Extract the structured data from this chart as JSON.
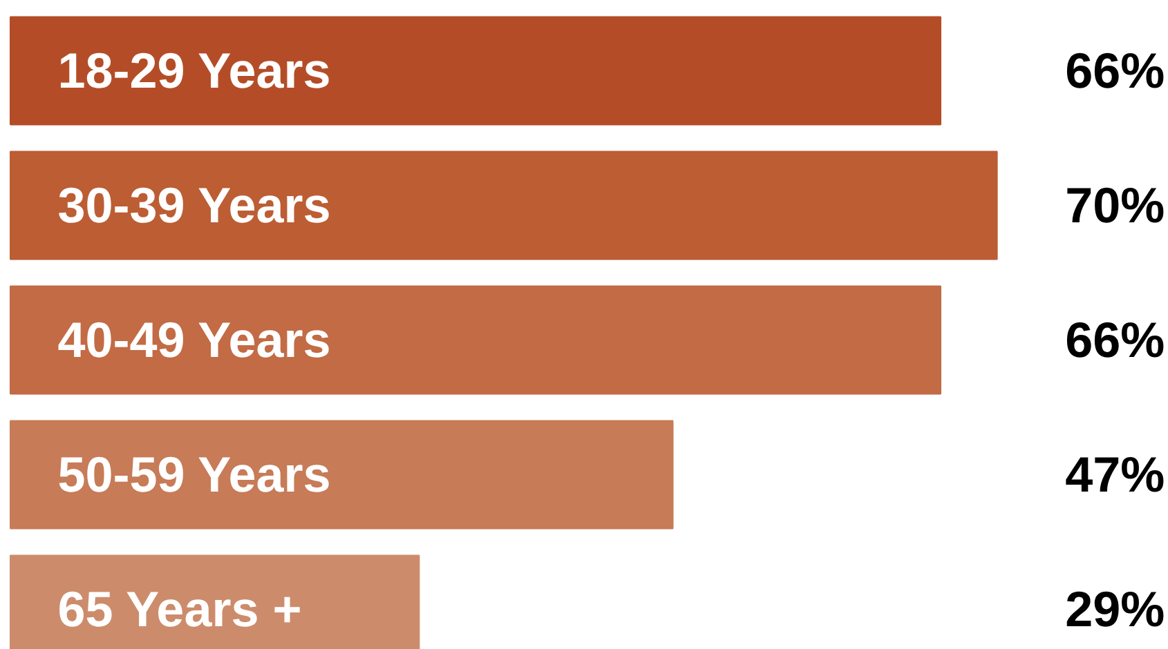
{
  "chart_data": {
    "type": "bar",
    "orientation": "horizontal",
    "categories": [
      "18-29 Years",
      "30-39 Years",
      "40-49 Years",
      "50-59 Years",
      "65 Years +"
    ],
    "values": [
      66,
      70,
      66,
      47,
      29
    ],
    "colors": [
      "#b44d27",
      "#bc5d34",
      "#c26b45",
      "#c77b57",
      "#cc8c6b"
    ],
    "value_labels": [
      "66%",
      "70%",
      "66%",
      "47%",
      "29%"
    ]
  }
}
